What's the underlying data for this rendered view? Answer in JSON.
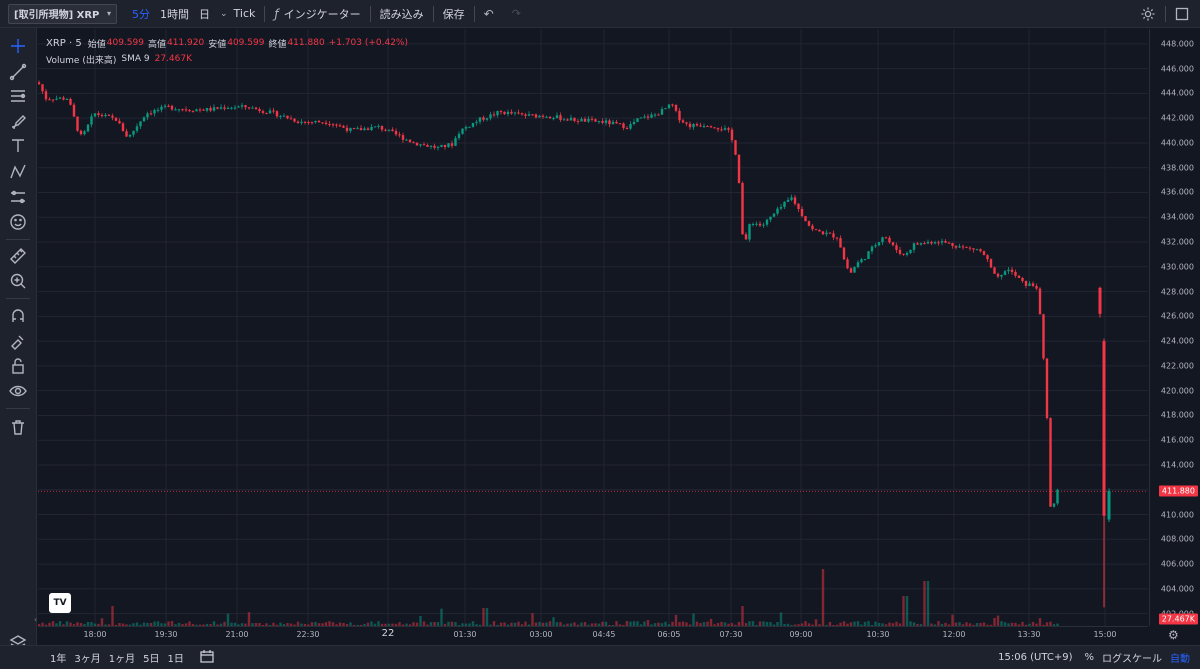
{
  "toolbar": {
    "symbol": "[取引所現物] XRP",
    "intervals": [
      "5分",
      "1時間",
      "日"
    ],
    "active_interval": "5分",
    "chart_type": "Tick",
    "indicators_label": "インジケーター",
    "load_label": "読み込み",
    "save_label": "保存"
  },
  "legend": {
    "symbol": "XRP · 5",
    "open_label": "始値",
    "open": "409.599",
    "high_label": "高値",
    "high": "411.920",
    "low_label": "安値",
    "low": "409.599",
    "close_label": "終値",
    "close": "411.880",
    "change": "+1.703 (+0.42%)",
    "volume_label": "Volume (出来高)",
    "sma_label": "SMA 9",
    "volume_value": "27.467K"
  },
  "price_axis": {
    "ticks": [
      "448.000",
      "446.000",
      "444.000",
      "442.000",
      "440.000",
      "438.000",
      "436.000",
      "434.000",
      "432.000",
      "430.000",
      "428.000",
      "426.000",
      "424.000",
      "422.000",
      "420.000",
      "418.000",
      "416.000",
      "414.000",
      "412.000",
      "410.000",
      "408.000",
      "406.000",
      "404.000",
      "402.000"
    ],
    "last_price": "411.880",
    "last_volume": "27.467K"
  },
  "time_axis": {
    "ticks": [
      "18:00",
      "19:30",
      "21:00",
      "22:30",
      "22",
      "01:30",
      "03:00",
      "04:45",
      "06:05",
      "07:30",
      "09:00",
      "10:30",
      "12:00",
      "13:30",
      "15:00"
    ]
  },
  "bottom_bar": {
    "ranges": [
      "1年",
      "3ヶ月",
      "1ヶ月",
      "5日",
      "1日"
    ],
    "time": "15:06 (UTC+9)",
    "percent": "%",
    "log_scale": "ログスケール",
    "auto": "自動"
  },
  "colors": {
    "up": "#089981",
    "down": "#f23645",
    "accent": "#2962ff",
    "background": "#131722"
  },
  "chart_data": {
    "type": "candlestick",
    "symbol": "XRP",
    "interval": "5",
    "ylim": [
      401,
      449.2
    ],
    "last_close": 411.88,
    "price_path": [
      [
        0,
        444.9
      ],
      [
        8,
        443.6
      ],
      [
        30,
        443.6
      ],
      [
        40,
        441.0
      ],
      [
        44,
        440.4
      ],
      [
        56,
        442.4
      ],
      [
        78,
        441.9
      ],
      [
        90,
        440.4
      ],
      [
        108,
        442.4
      ],
      [
        130,
        442.9
      ],
      [
        150,
        442.7
      ],
      [
        172,
        442.7
      ],
      [
        188,
        442.9
      ],
      [
        210,
        442.9
      ],
      [
        240,
        442.3
      ],
      [
        262,
        441.7
      ],
      [
        290,
        441.7
      ],
      [
        314,
        441.0
      ],
      [
        340,
        441.3
      ],
      [
        360,
        440.6
      ],
      [
        376,
        440.0
      ],
      [
        400,
        439.6
      ],
      [
        414,
        439.9
      ],
      [
        422,
        441.0
      ],
      [
        442,
        441.9
      ],
      [
        462,
        442.5
      ],
      [
        490,
        442.2
      ],
      [
        510,
        442.2
      ],
      [
        530,
        441.9
      ],
      [
        566,
        441.7
      ],
      [
        590,
        441.3
      ],
      [
        600,
        441.9
      ],
      [
        618,
        442.3
      ],
      [
        634,
        443.1
      ],
      [
        640,
        442.1
      ],
      [
        650,
        441.4
      ],
      [
        670,
        441.5
      ],
      [
        690,
        441.0
      ],
      [
        696,
        439.8
      ],
      [
        700,
        438.2
      ],
      [
        704,
        433.0
      ],
      [
        706,
        431.5
      ],
      [
        710,
        432.6
      ],
      [
        712,
        433.7
      ],
      [
        724,
        433.3
      ],
      [
        748,
        435.2
      ],
      [
        754,
        435.6
      ],
      [
        760,
        434.7
      ],
      [
        774,
        433.0
      ],
      [
        800,
        432.4
      ],
      [
        806,
        430.6
      ],
      [
        812,
        429.4
      ],
      [
        818,
        430.2
      ],
      [
        826,
        430.7
      ],
      [
        832,
        431.3
      ],
      [
        846,
        432.6
      ],
      [
        854,
        431.7
      ],
      [
        866,
        430.9
      ],
      [
        876,
        431.8
      ],
      [
        900,
        432.1
      ],
      [
        914,
        431.8
      ],
      [
        928,
        431.5
      ],
      [
        940,
        431.4
      ],
      [
        948,
        430.8
      ],
      [
        956,
        429.3
      ],
      [
        962,
        429.0
      ],
      [
        968,
        429.9
      ],
      [
        980,
        429.1
      ],
      [
        986,
        428.6
      ],
      [
        996,
        428.5
      ],
      [
        1000,
        428.3
      ],
      [
        1002,
        426.0
      ],
      [
        1004,
        424.0
      ],
      [
        1008,
        420.0
      ],
      [
        1012,
        411.0
      ],
      [
        1014,
        409.6
      ],
      [
        1018,
        411.9
      ]
    ],
    "volume_hint": "baseline low with spikes near 09:00, 11:45 and 14:55"
  }
}
